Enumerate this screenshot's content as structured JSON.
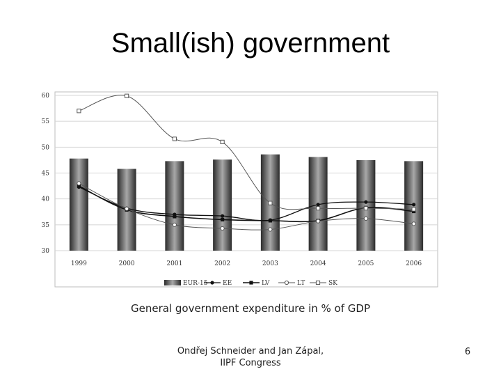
{
  "slide": {
    "title": "Small(ish) government",
    "caption": "General government expenditure in % of GDP",
    "footer_line1": "Ondřej Schneider and Jan Zápal,",
    "footer_line2": "IIPF Congress",
    "page_number": "6"
  },
  "chart_data": {
    "type": "bar",
    "title": "",
    "xlabel": "",
    "ylabel": "",
    "categories": [
      "1999",
      "2000",
      "2001",
      "2002",
      "2003",
      "2004",
      "2005",
      "2006"
    ],
    "ylim": [
      30,
      60
    ],
    "yticks": [
      30,
      35,
      40,
      45,
      50,
      55,
      60
    ],
    "grid": true,
    "legend_position": "bottom",
    "series": [
      {
        "name": "EUR-15",
        "kind": "bar",
        "values": [
          47.8,
          45.8,
          47.3,
          47.6,
          48.6,
          48.1,
          47.5,
          47.3
        ]
      },
      {
        "name": "EE",
        "kind": "line",
        "marker": "filled-circle",
        "values": [
          42.3,
          38.2,
          37.0,
          36.7,
          35.9,
          38.9,
          39.4,
          38.9
        ]
      },
      {
        "name": "LV",
        "kind": "line",
        "marker": "filled-square",
        "values": [
          42.5,
          37.9,
          36.6,
          36.0,
          35.8,
          35.8,
          38.3,
          37.6
        ]
      },
      {
        "name": "LT",
        "kind": "line",
        "marker": "open-circle",
        "values": [
          43.0,
          38.1,
          35.0,
          34.3,
          34.1,
          35.7,
          36.2,
          35.2
        ]
      },
      {
        "name": "SK",
        "kind": "line",
        "marker": "open-square",
        "values": [
          57.0,
          59.9,
          51.6,
          51.0,
          39.2,
          38.2,
          38.2,
          38.0
        ]
      }
    ],
    "colors": {
      "bar_dark": "#2b2b2b",
      "bar_light": "#a8a8a8",
      "line_dark": "#111111",
      "line_gray": "#555555",
      "grid": "#d4d4d4"
    }
  }
}
